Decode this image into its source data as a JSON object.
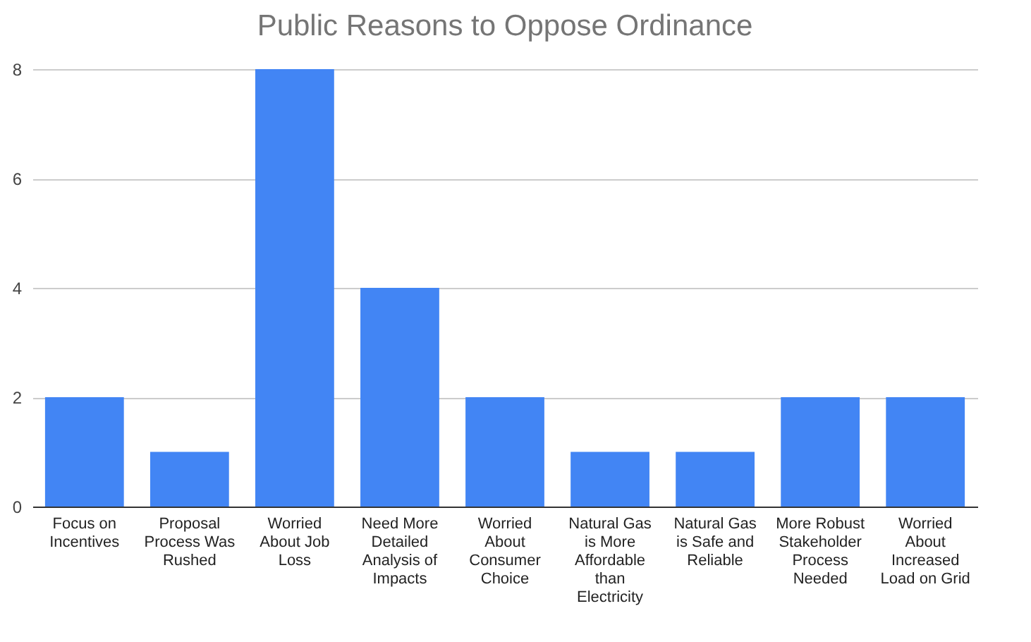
{
  "chart_data": {
    "type": "bar",
    "title": "Public Reasons to Oppose Ordinance",
    "categories": [
      "Focus on Incentives",
      "Proposal Process Was Rushed",
      "Worried About Job Loss",
      "Need More Detailed Analysis of Impacts",
      "Worried About Consumer Choice",
      "Natural Gas is More Affordable than Electricity",
      "Natural Gas is Safe and Reliable",
      "More Robust Stakeholder Process Needed",
      "Worried About Increased Load on Grid"
    ],
    "values": [
      2,
      1,
      8,
      4,
      2,
      1,
      1,
      2,
      2
    ],
    "color": "#4285f4",
    "ylim": [
      0,
      8
    ],
    "yticks": [
      0,
      2,
      4,
      6,
      8
    ],
    "grid": "y"
  }
}
